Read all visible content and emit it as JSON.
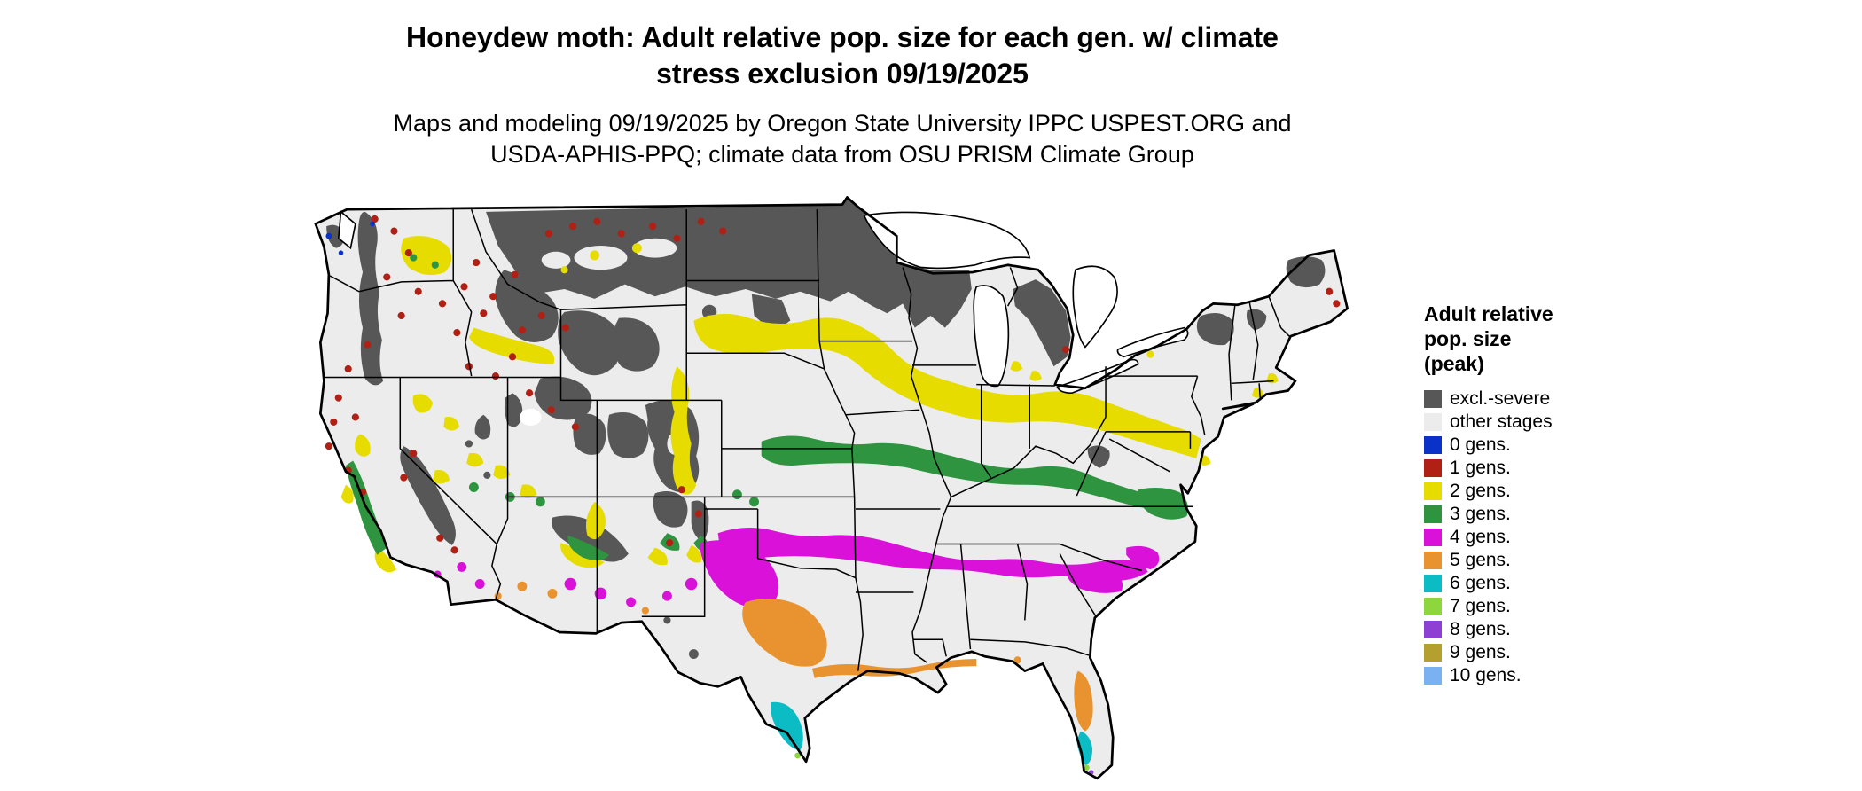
{
  "header": {
    "title_line1": "Honeydew moth: Adult relative pop. size for each gen. w/ climate",
    "title_line2": "stress exclusion 09/19/2025",
    "subtitle_line1": "Maps and modeling 09/19/2025 by Oregon State University IPPC USPEST.ORG and",
    "subtitle_line2": "USDA-APHIS-PPQ; climate data from OSU PRISM Climate Group"
  },
  "map": {
    "name": "Continental United States",
    "kind": "gridded generation-count suitability map",
    "zones": [
      {
        "class": "excl.-severe",
        "where": "Northern Plains, Upper Midwest, northern Rockies, Cascades, Sierra Nevada, Colorado Rockies, northern New England"
      },
      {
        "class": "other stages",
        "where": "light background across most of the central and eastern U.S."
      },
      {
        "class": "1 gens.",
        "where": "scattered speckles in the Pacific Northwest, northern Rockies and California coast ranges"
      },
      {
        "class": "2 gens.",
        "where": "wavy band from the central Plains through the Corn Belt to the Mid-Atlantic; Columbia Basin, Snake River Plain and Great Basin patches"
      },
      {
        "class": "3 gens.",
        "where": "band from Kansas and Missouri through Kentucky to Virginia; California Central Valley; Mogollon Rim"
      },
      {
        "class": "4 gens.",
        "where": "band from west Texas and Oklahoma through the mid-South to the Carolinas; southern deserts"
      },
      {
        "class": "5 gens.",
        "where": "central/south Texas, western Gulf Coast strip, central Florida, low deserts of Arizona"
      },
      {
        "class": "6 gens.",
        "where": "far south Texas and south Florida"
      }
    ]
  },
  "legend": {
    "title_lines": [
      "Adult relative",
      "pop. size",
      "(peak)"
    ],
    "entries": [
      {
        "key": "excl",
        "label": "excl.-severe",
        "color": "#575757"
      },
      {
        "key": "other",
        "label": "other stages",
        "color": "#ececec"
      },
      {
        "key": "g0",
        "label": "0 gens.",
        "color": "#0a32c8"
      },
      {
        "key": "g1",
        "label": "1 gens.",
        "color": "#b02014"
      },
      {
        "key": "g2",
        "label": "2 gens.",
        "color": "#e6dc00"
      },
      {
        "key": "g3",
        "label": "3 gens.",
        "color": "#2e9440"
      },
      {
        "key": "g4",
        "label": "4 gens.",
        "color": "#d911d9"
      },
      {
        "key": "g5",
        "label": "5 gens.",
        "color": "#e8932f"
      },
      {
        "key": "g6",
        "label": "6 gens.",
        "color": "#0cbcc4"
      },
      {
        "key": "g7",
        "label": "7 gens.",
        "color": "#8ed63e"
      },
      {
        "key": "g8",
        "label": "8 gens.",
        "color": "#8e3fd4"
      },
      {
        "key": "g9",
        "label": "9 gens.",
        "color": "#b3a02e"
      },
      {
        "key": "g10",
        "label": "10 gens.",
        "color": "#7ab1f2"
      }
    ]
  }
}
